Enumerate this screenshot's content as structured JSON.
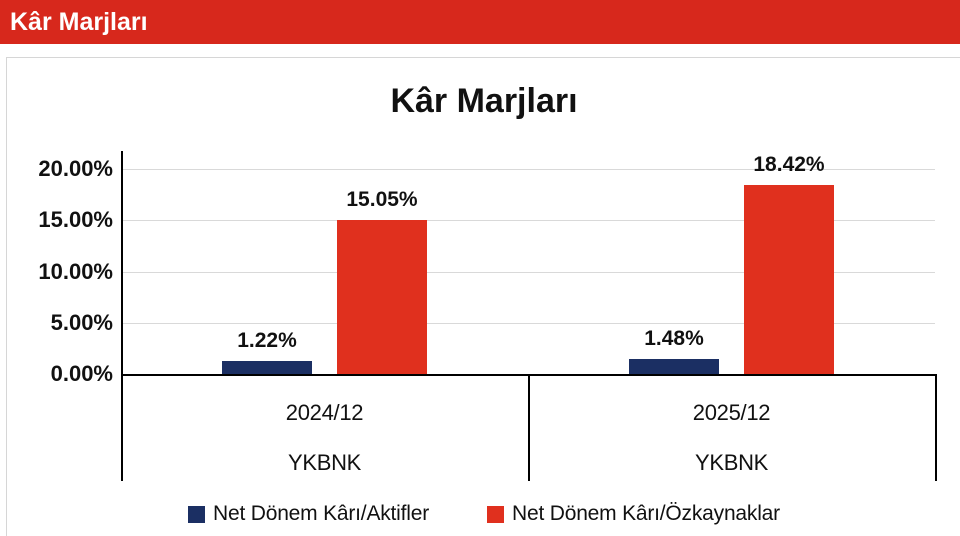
{
  "header": {
    "title": "Kâr Marjları"
  },
  "colors": {
    "header_bg": "#D7281C",
    "header_text": "#FFFFFF",
    "series_aktifler": "#1B2F63",
    "series_ozkaynaklar": "#E0301E",
    "gridline": "#D9D9D9",
    "axis": "#000000",
    "card_border": "#D6D6D6"
  },
  "chart_data": {
    "type": "bar",
    "title": "Kâr Marjları",
    "categories": [
      {
        "period": "2024/12",
        "ticker": "YKBNK"
      },
      {
        "period": "2025/12",
        "ticker": "YKBNK"
      }
    ],
    "series": [
      {
        "name": "Net Dönem Kârı/Aktifler",
        "color": "#1B2F63",
        "values": [
          1.22,
          1.48
        ],
        "data_labels": [
          "1.22%",
          "1.48%"
        ]
      },
      {
        "name": "Net Dönem Kârı/Özkaynaklar",
        "color": "#E0301E",
        "values": [
          15.05,
          18.42
        ],
        "data_labels": [
          "15.05%",
          "18.42%"
        ]
      }
    ],
    "yticks": [
      {
        "value": 0,
        "label": "0.00%"
      },
      {
        "value": 5,
        "label": "5.00%"
      },
      {
        "value": 10,
        "label": "10.00%"
      },
      {
        "value": 15,
        "label": "15.00%"
      },
      {
        "value": 20,
        "label": "20.00%"
      }
    ],
    "ylim": [
      0,
      20
    ],
    "grid": true,
    "legend_position": "bottom"
  }
}
